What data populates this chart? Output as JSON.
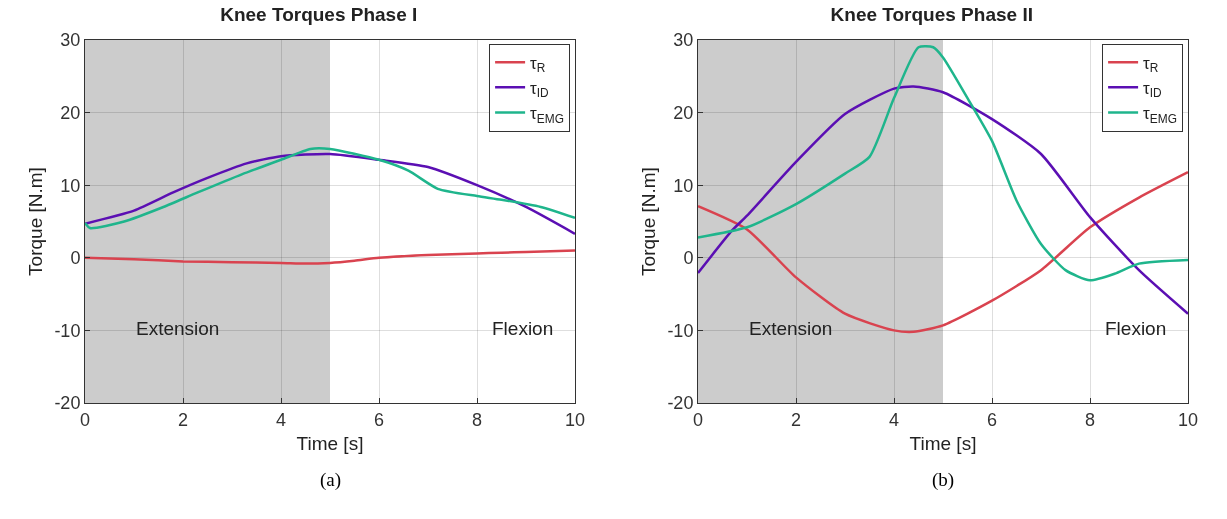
{
  "chart_data": [
    {
      "type": "line",
      "title": "Knee Torques Phase I",
      "xlabel": "Time [s]",
      "ylabel": "Torque [N.m]",
      "xlim": [
        0,
        10
      ],
      "ylim": [
        -20,
        30
      ],
      "xticks": [
        0,
        2,
        4,
        6,
        8,
        10
      ],
      "yticks": [
        -20,
        -10,
        0,
        10,
        20,
        30
      ],
      "grid": true,
      "legend": "top right",
      "line_style": "solid",
      "marker": "none",
      "bands": [
        {
          "axis": "x",
          "from": 0,
          "to": 5,
          "color": "#cccccc",
          "label": "Extension"
        }
      ],
      "annotations": [
        "Flexion",
        "(a)"
      ],
      "series": [
        {
          "name": "τ$_{R}$",
          "color": "#d9434f",
          "x": [
            0,
            1,
            2,
            3,
            4,
            4.5,
            5,
            5.5,
            6,
            7,
            8,
            8.5,
            9,
            10
          ],
          "values": [
            0,
            -0.2,
            -0.5,
            -0.6,
            -0.7,
            -0.8,
            -0.7,
            -0.4,
            0,
            0.4,
            0.6,
            0.7,
            0.8,
            1
          ]
        },
        {
          "name": "τ$_{ID}$",
          "color": "#5b0fb3",
          "x": [
            0,
            1,
            1.8,
            2.5,
            3.3,
            4,
            5,
            6,
            7,
            8,
            9,
            10
          ],
          "values": [
            4.7,
            6.5,
            9,
            11,
            13,
            14,
            14.3,
            13.5,
            12.5,
            10,
            7,
            3.3
          ]
        },
        {
          "name": "τ$_{EMG}$",
          "color": "#1fb58c",
          "x": [
            0,
            0.1,
            0.8,
            1.6,
            2.3,
            3.2,
            4,
            4.6,
            5,
            6,
            6.6,
            7.2,
            8,
            8.5,
            9.3,
            10
          ],
          "values": [
            4.8,
            4.1,
            5,
            7,
            9,
            11.5,
            13.5,
            15,
            15,
            13.5,
            12,
            9.5,
            8.5,
            8,
            7,
            5.5
          ]
        }
      ]
    },
    {
      "type": "line",
      "title": "Knee Torques Phase II",
      "xlabel": "Time [s]",
      "ylabel": "Torque [N.m]",
      "xlim": [
        0,
        10
      ],
      "ylim": [
        -20,
        30
      ],
      "xticks": [
        0,
        2,
        4,
        6,
        8,
        10
      ],
      "yticks": [
        -20,
        -10,
        0,
        10,
        20,
        30
      ],
      "grid": true,
      "legend": "top right",
      "line_style": "solid",
      "marker": "none",
      "bands": [
        {
          "axis": "x",
          "from": 0,
          "to": 5,
          "color": "#cccccc",
          "label": "Extension"
        }
      ],
      "annotations": [
        "Flexion",
        "(b)"
      ],
      "series": [
        {
          "name": "τ$_{R}$",
          "color": "#d9434f",
          "x": [
            0,
            1,
            2,
            3,
            4,
            4.4,
            5,
            6,
            7,
            8,
            9,
            10
          ],
          "values": [
            7.1,
            3.9,
            -2.7,
            -7.7,
            -10,
            -10.2,
            -9.3,
            -5.9,
            -1.7,
            4.2,
            8.3,
            11.8
          ]
        },
        {
          "name": "τ$_{ID}$",
          "color": "#5b0fb3",
          "x": [
            0,
            0.7,
            1,
            2,
            3,
            4,
            4.4,
            5,
            6,
            7,
            8,
            9,
            10
          ],
          "values": [
            -2.1,
            3.8,
            5.8,
            13.2,
            19.8,
            23.3,
            23.6,
            22.8,
            19.1,
            14.3,
            5.6,
            -1.7,
            -7.7
          ]
        },
        {
          "name": "τ$_{EMG}$",
          "color": "#1fb58c",
          "x": [
            0,
            1,
            2,
            3,
            3.5,
            4,
            4.5,
            4.8,
            5,
            5.5,
            6,
            6.5,
            7,
            7.5,
            8,
            8.5,
            9,
            10
          ],
          "values": [
            2.8,
            4.2,
            7.4,
            11.6,
            13.9,
            22,
            29,
            29,
            27.6,
            22,
            16.1,
            7.9,
            1.9,
            -1.7,
            -3.1,
            -2.2,
            -0.8,
            -0.3
          ]
        }
      ]
    }
  ]
}
